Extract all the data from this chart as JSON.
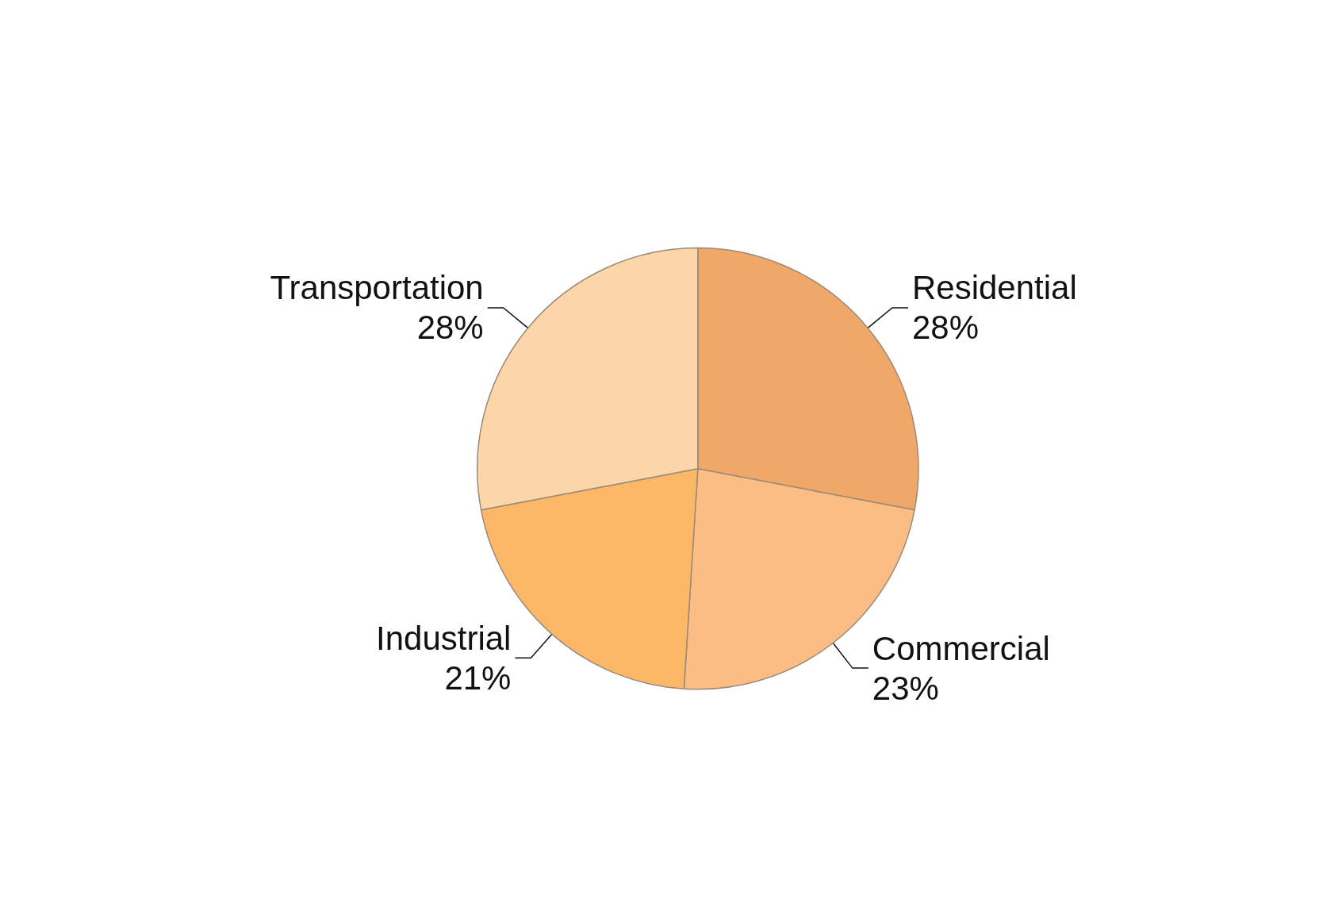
{
  "chart_data": {
    "type": "pie",
    "categories": [
      "Residential",
      "Commercial",
      "Industrial",
      "Transportation"
    ],
    "values": [
      28,
      23,
      21,
      28
    ],
    "value_labels": [
      "28%",
      "23%",
      "21%",
      "28%"
    ],
    "colors": [
      "#f0a868",
      "#fbbd84",
      "#fcb866",
      "#fcd5a8"
    ],
    "legend": false
  }
}
